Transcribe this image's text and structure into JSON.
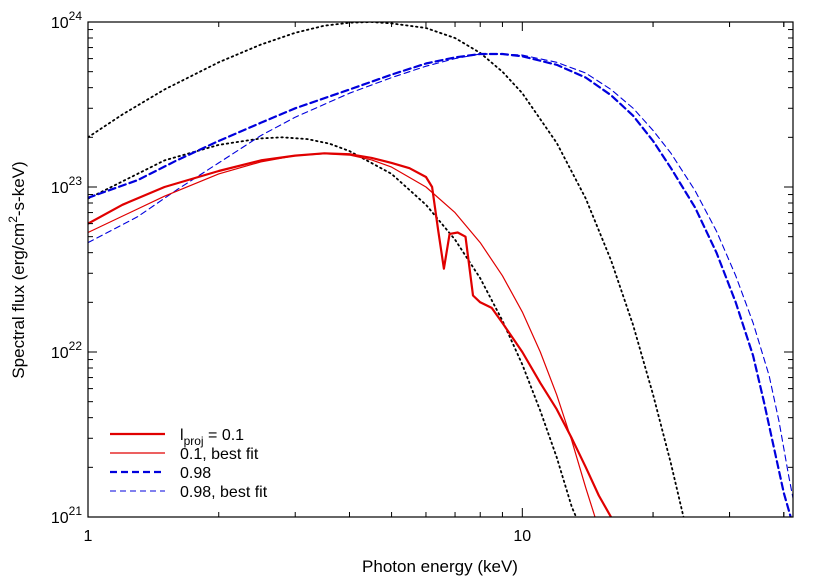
{
  "chart_data": {
    "type": "line",
    "xlabel": "Photon energy (keV)",
    "ylabel_parts": [
      "Spectral flux (erg/cm",
      "2",
      "-s-keV)"
    ],
    "x_scale": "log",
    "y_scale": "log",
    "xlim": [
      1,
      42
    ],
    "ylim": [
      1e+21,
      1e+24
    ],
    "grid": false,
    "legend_position": "bottom-left",
    "x_ticks": [
      {
        "value": 1,
        "label": "1"
      },
      {
        "value": 10,
        "label": "10"
      }
    ],
    "y_ticks": [
      {
        "value": 1e+21,
        "base": "10",
        "exp": "21"
      },
      {
        "value": 1e+22,
        "base": "10",
        "exp": "22"
      },
      {
        "value": 1e+23,
        "base": "10",
        "exp": "23"
      },
      {
        "value": 1e+24,
        "base": "10",
        "exp": "24"
      }
    ],
    "legend": [
      {
        "parts": [
          {
            "t": "l",
            "k": "n"
          },
          {
            "t": "proj",
            "k": "sub"
          },
          {
            "t": " = 0.1",
            "k": "n"
          }
        ],
        "series": "s1"
      },
      {
        "parts": [
          {
            "t": "0.1, best fit",
            "k": "n"
          }
        ],
        "series": "s2"
      },
      {
        "parts": [
          {
            "t": "0.98",
            "k": "n"
          }
        ],
        "series": "s3"
      },
      {
        "parts": [
          {
            "t": "0.98, best fit",
            "k": "n"
          }
        ],
        "series": "s4"
      }
    ],
    "series": [
      {
        "id": "s1",
        "color": "#e00000",
        "width": 2.2,
        "dash": "none",
        "points": [
          [
            1,
            6e+22
          ],
          [
            1.2,
            7.8e+22
          ],
          [
            1.5,
            1e+23
          ],
          [
            2,
            1.25e+23
          ],
          [
            2.5,
            1.45e+23
          ],
          [
            3,
            1.55e+23
          ],
          [
            3.5,
            1.6e+23
          ],
          [
            4,
            1.58e+23
          ],
          [
            4.5,
            1.5e+23
          ],
          [
            5,
            1.4e+23
          ],
          [
            5.5,
            1.3e+23
          ],
          [
            6,
            1.15e+23
          ],
          [
            6.2,
            1e+23
          ],
          [
            6.4,
            5.5e+22
          ],
          [
            6.6,
            3.2e+22
          ],
          [
            6.8,
            5.2e+22
          ],
          [
            7.1,
            5.3e+22
          ],
          [
            7.4,
            5e+22
          ],
          [
            7.7,
            2.2e+22
          ],
          [
            8,
            2e+22
          ],
          [
            8.5,
            1.85e+22
          ],
          [
            9,
            1.5e+22
          ],
          [
            10,
            1e+22
          ],
          [
            11,
            6.5e+21
          ],
          [
            12,
            4.5e+21
          ],
          [
            13,
            3e+21
          ],
          [
            14,
            2e+21
          ],
          [
            15,
            1.35e+21
          ],
          [
            16,
            1e+21
          ]
        ]
      },
      {
        "id": "s2",
        "color": "#e00000",
        "width": 1.2,
        "dash": "none",
        "points": [
          [
            1,
            5.3e+22
          ],
          [
            1.5,
            8.8e+22
          ],
          [
            2,
            1.2e+23
          ],
          [
            2.5,
            1.42e+23
          ],
          [
            3,
            1.55e+23
          ],
          [
            3.5,
            1.59e+23
          ],
          [
            4,
            1.56e+23
          ],
          [
            4.5,
            1.46e+23
          ],
          [
            5,
            1.32e+23
          ],
          [
            6,
            1e+23
          ],
          [
            7,
            7e+22
          ],
          [
            8,
            4.6e+22
          ],
          [
            9,
            2.9e+22
          ],
          [
            10,
            1.75e+22
          ],
          [
            11,
            1e+22
          ],
          [
            12,
            5.5e+21
          ],
          [
            13,
            2.9e+21
          ],
          [
            14,
            1.5e+21
          ],
          [
            14.7,
            1e+21
          ]
        ]
      },
      {
        "id": "s3",
        "color": "#0000dd",
        "width": 2.2,
        "dash": "7,4",
        "points": [
          [
            1,
            8.6e+22
          ],
          [
            1.3,
            1.1e+23
          ],
          [
            1.6,
            1.45e+23
          ],
          [
            2,
            1.9e+23
          ],
          [
            2.5,
            2.45e+23
          ],
          [
            3,
            3e+23
          ],
          [
            4,
            3.9e+23
          ],
          [
            5,
            4.8e+23
          ],
          [
            6,
            5.6e+23
          ],
          [
            7,
            6.1e+23
          ],
          [
            8,
            6.4e+23
          ],
          [
            9,
            6.4e+23
          ],
          [
            10,
            6.2e+23
          ],
          [
            12,
            5.5e+23
          ],
          [
            14,
            4.6e+23
          ],
          [
            16,
            3.6e+23
          ],
          [
            18,
            2.7e+23
          ],
          [
            20,
            1.9e+23
          ],
          [
            22,
            1.3e+23
          ],
          [
            25,
            7.5e+22
          ],
          [
            28,
            4e+22
          ],
          [
            31,
            2e+22
          ],
          [
            34,
            9.5e+21
          ],
          [
            36,
            5e+21
          ],
          [
            38,
            2.6e+21
          ],
          [
            40,
            1.4e+21
          ],
          [
            41.5,
            1e+21
          ]
        ]
      },
      {
        "id": "s4",
        "color": "#0000dd",
        "width": 1.1,
        "dash": "6,4",
        "points": [
          [
            1,
            4.6e+22
          ],
          [
            1.3,
            6.6e+22
          ],
          [
            1.6,
            9.6e+22
          ],
          [
            2,
            1.4e+23
          ],
          [
            2.5,
            2.05e+23
          ],
          [
            3,
            2.65e+23
          ],
          [
            4,
            3.7e+23
          ],
          [
            5,
            4.6e+23
          ],
          [
            6,
            5.4e+23
          ],
          [
            7,
            6e+23
          ],
          [
            8,
            6.4e+23
          ],
          [
            9,
            6.4e+23
          ],
          [
            10,
            6.3e+23
          ],
          [
            12,
            5.7e+23
          ],
          [
            14,
            4.9e+23
          ],
          [
            16,
            3.9e+23
          ],
          [
            18,
            3e+23
          ],
          [
            20,
            2.2e+23
          ],
          [
            22,
            1.6e+23
          ],
          [
            25,
            9.5e+22
          ],
          [
            28,
            5.4e+22
          ],
          [
            31,
            2.9e+22
          ],
          [
            34,
            1.5e+22
          ],
          [
            37,
            7.2e+21
          ],
          [
            39,
            3.8e+21
          ],
          [
            41,
            1.8e+21
          ],
          [
            42,
            1.3e+21
          ]
        ]
      },
      {
        "id": "b1",
        "color": "#000000",
        "width": 1.8,
        "dash": "1.5,3.5",
        "points": [
          [
            1,
            2e+23
          ],
          [
            1.2,
            2.75e+23
          ],
          [
            1.5,
            3.9e+23
          ],
          [
            2,
            5.7e+23
          ],
          [
            2.5,
            7.3e+23
          ],
          [
            3,
            8.6e+23
          ],
          [
            3.5,
            9.5e+23
          ],
          [
            4,
            9.9e+23
          ],
          [
            4.5,
            1e+24
          ],
          [
            5,
            9.8e+23
          ],
          [
            6,
            9.2e+23
          ],
          [
            7,
            8e+23
          ],
          [
            8,
            6.5e+23
          ],
          [
            9,
            5e+23
          ],
          [
            10,
            3.7e+23
          ],
          [
            12,
            1.85e+23
          ],
          [
            14,
            8.5e+22
          ],
          [
            16,
            3.6e+22
          ],
          [
            18,
            1.45e+22
          ],
          [
            20,
            5.5e+21
          ],
          [
            22,
            2.1e+21
          ],
          [
            23.5,
            1e+21
          ]
        ]
      },
      {
        "id": "b2",
        "color": "#000000",
        "width": 1.8,
        "dash": "1.5,3.5",
        "points": [
          [
            1,
            8.5e+22
          ],
          [
            1.5,
            1.45e+23
          ],
          [
            2,
            1.8e+23
          ],
          [
            2.5,
            1.97e+23
          ],
          [
            2.8,
            2e+23
          ],
          [
            3.2,
            1.95e+23
          ],
          [
            3.6,
            1.83e+23
          ],
          [
            4,
            1.65e+23
          ],
          [
            5,
            1.2e+23
          ],
          [
            6,
            7.8e+22
          ],
          [
            7,
            4.8e+22
          ],
          [
            8,
            2.8e+22
          ],
          [
            9,
            1.55e+22
          ],
          [
            10,
            8.4e+21
          ],
          [
            11,
            4.4e+21
          ],
          [
            12,
            2.3e+21
          ],
          [
            13,
            1.15e+21
          ],
          [
            13.3,
            1e+21
          ]
        ]
      }
    ]
  }
}
